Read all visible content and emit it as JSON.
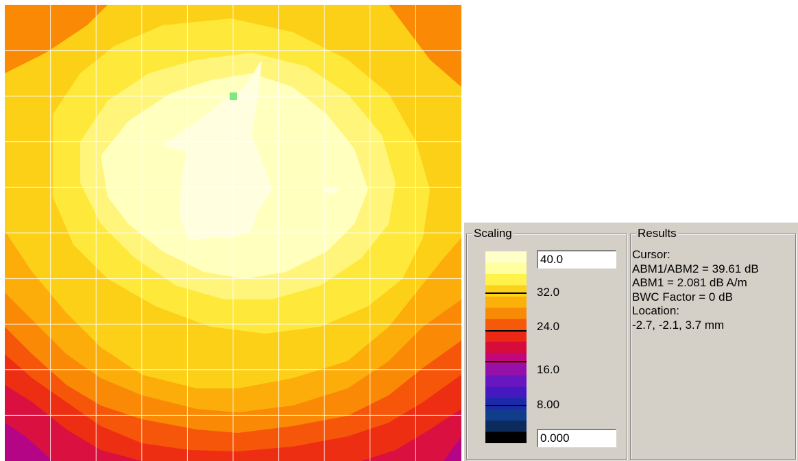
{
  "plot": {
    "contour_colors": [
      "#b40586",
      "#d91040",
      "#ee2e12",
      "#f6560a",
      "#fa8a05",
      "#fcad0a",
      "#fdd018",
      "#fee93a",
      "#fff57a",
      "#ffffbe",
      "#ffffe0"
    ],
    "grid_color": "#ffffff",
    "cursor_marker_color": "#7de87d"
  },
  "scaling": {
    "title": "Scaling",
    "max_value": "40.0",
    "min_value": "0.000",
    "tick_labels": [
      "32.0",
      "24.0",
      "16.0",
      "8.00"
    ],
    "legend_colors": [
      "#ffffc8",
      "#ffffa0",
      "#fff24a",
      "#fdd21a",
      "#fcb10a",
      "#f88a06",
      "#f45a0a",
      "#ec2814",
      "#d60c3a",
      "#c0087a",
      "#9410a8",
      "#6816c0",
      "#4618c0",
      "#1a2aa8",
      "#103c8c",
      "#0c2a5c",
      "#000000"
    ],
    "tick_line_color": "#000000"
  },
  "results": {
    "title": "Results",
    "lines": [
      "Cursor:",
      "ABM1/ABM2 = 39.61 dB",
      "ABM1 = 2.081 dB A/m",
      "BWC Factor = 0 dB",
      "Location:",
      "-2.7, -2.1, 3.7 mm"
    ]
  }
}
